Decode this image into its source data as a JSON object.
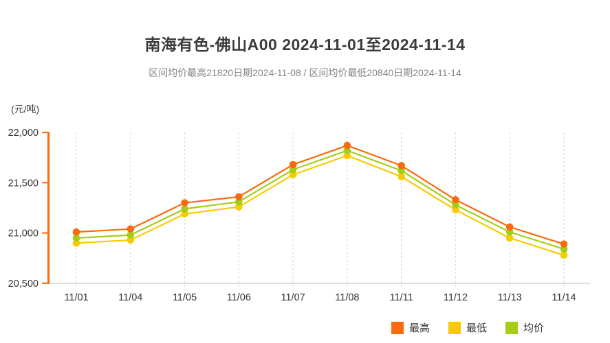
{
  "page": {
    "title": "南海有色-佛山A00 2024-11-01至2024-11-14",
    "subtitle": "区间均价最高21820日期2024-11-08 / 区间均价最低20840日期2024-11-14",
    "unit_label": "(元/吨)"
  },
  "chart_data": {
    "type": "line",
    "title": "南海有色-佛山A00 2024-11-01至2024-11-14",
    "subtitle": "区间均价最高21820日期2024-11-08 / 区间均价最低20840日期2024-11-14",
    "ylabel": "(元/吨)",
    "xlabel": "",
    "categories": [
      "11/01",
      "11/04",
      "11/05",
      "11/06",
      "11/07",
      "11/08",
      "11/11",
      "11/12",
      "11/13",
      "11/14"
    ],
    "series": [
      {
        "name": "最高",
        "color": "#fb6a0d",
        "values": [
          21010,
          21040,
          21300,
          21360,
          21680,
          21870,
          21670,
          21330,
          21060,
          20890
        ]
      },
      {
        "name": "最低",
        "color": "#f8cb00",
        "values": [
          20900,
          20930,
          21190,
          21260,
          21580,
          21770,
          21560,
          21230,
          20950,
          20780
        ]
      },
      {
        "name": "均价",
        "color": "#a5cd17",
        "values": [
          20950,
          20980,
          21240,
          21310,
          21630,
          21820,
          21620,
          21280,
          21010,
          20840
        ]
      }
    ],
    "ylim": [
      20500,
      22000
    ],
    "yticks": [
      {
        "value": 20500,
        "label": "20,500"
      },
      {
        "value": 21000,
        "label": "21,000"
      },
      {
        "value": 21500,
        "label": "21,500"
      },
      {
        "value": 22000,
        "label": "22,000"
      }
    ],
    "grid": "vertical-dashed",
    "legend_position": "bottom-right"
  },
  "style_colors": {
    "y_axis": "#fb6a0d",
    "x_axis": "#cccccc",
    "gridline": "#dddddd",
    "axis_text": "#333333"
  }
}
